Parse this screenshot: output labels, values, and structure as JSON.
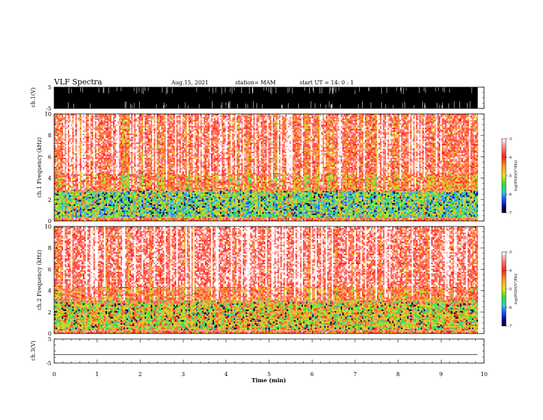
{
  "header": {
    "title": "VLF Spectra",
    "date": "Aug.15, 2021",
    "station": "station= MAM",
    "start": "start  UT =   14: 0  : 1"
  },
  "colorbar": {
    "ylabel": "log(PSD)(V²/Hz)",
    "ticks": [
      -3,
      -4,
      -5,
      -6,
      -7
    ],
    "colors": [
      "#ffffff",
      "#ff3030",
      "#ffa020",
      "#e8e020",
      "#40e040",
      "#30d0d0",
      "#2060ff",
      "#000080",
      "#000000"
    ]
  },
  "chart_data": [
    {
      "type": "line",
      "name": "ch.1 waveform",
      "ylabel": "ch.1(V)",
      "xlim": [
        0,
        10
      ],
      "ylim": [
        -5,
        5
      ],
      "yticks": [
        5,
        -5
      ],
      "description_level": "saturated broadband noise between -5 and 5 V"
    },
    {
      "type": "heatmap",
      "ylabel": "ch.1 Frequency  (kHz)",
      "xlim": [
        0,
        10
      ],
      "ylim": [
        0,
        10
      ],
      "yticks": [
        0,
        2,
        4,
        6,
        8,
        10
      ],
      "zlim": [
        -7,
        -3
      ],
      "data_end_min": 9.85,
      "bands_khz": [
        {
          "from": 0,
          "to": 0.3,
          "level": -4.2
        },
        {
          "from": 0.3,
          "to": 2.9,
          "level": -5.3
        },
        {
          "from": 2.9,
          "to": 4.5,
          "level": -4.3
        },
        {
          "from": 4.5,
          "to": 10,
          "level": -3.8
        }
      ]
    },
    {
      "type": "heatmap",
      "ylabel": "ch.2 Frequency  (kHz)",
      "xlim": [
        0,
        10
      ],
      "ylim": [
        0,
        10
      ],
      "yticks": [
        0,
        2,
        4,
        6,
        8,
        10
      ],
      "zlim": [
        -7,
        -3
      ],
      "data_end_min": 9.85,
      "bands_khz": [
        {
          "from": 0,
          "to": 0.3,
          "level": -4.2
        },
        {
          "from": 0.3,
          "to": 3.2,
          "level": -4.8
        },
        {
          "from": 3.2,
          "to": 4.5,
          "level": -4.1
        },
        {
          "from": 4.5,
          "to": 10,
          "level": -3.6
        }
      ]
    },
    {
      "type": "line",
      "name": "ch.3 waveform",
      "ylabel": "ch.3(V)",
      "xlim": [
        0,
        10
      ],
      "ylim": [
        -5,
        5
      ],
      "yticks": [
        5,
        0,
        -5
      ],
      "x": [
        0,
        9.85
      ],
      "y": [
        -1.5,
        -1.5
      ]
    }
  ],
  "xaxis": {
    "label": "Time  (min)",
    "ticks": [
      0,
      1,
      2,
      3,
      4,
      5,
      6,
      7,
      8,
      9,
      10
    ]
  }
}
